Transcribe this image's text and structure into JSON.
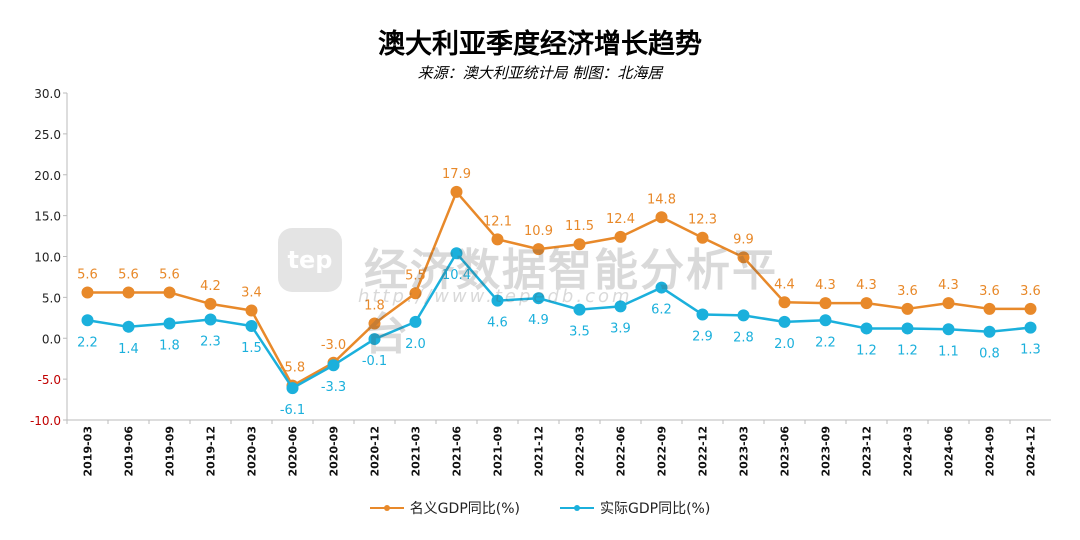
{
  "chart_data": {
    "type": "line",
    "title": "澳大利亚季度经济增长趋势",
    "subtitle": "来源：澳大利亚统计局 制图：北海居",
    "categories": [
      "2019-03",
      "2019-06",
      "2019-09",
      "2019-12",
      "2020-03",
      "2020-06",
      "2020-09",
      "2020-12",
      "2021-03",
      "2021-06",
      "2021-09",
      "2021-12",
      "2022-03",
      "2022-06",
      "2022-09",
      "2022-12",
      "2023-03",
      "2023-06",
      "2023-09",
      "2023-12",
      "2024-03",
      "2024-06",
      "2024-09",
      "2024-12"
    ],
    "series": [
      {
        "name": "名义GDP同比(%)",
        "color": "#e8892a",
        "values": [
          5.6,
          5.6,
          5.6,
          4.2,
          3.4,
          -5.8,
          -3.0,
          1.8,
          5.5,
          17.9,
          12.1,
          10.9,
          11.5,
          12.4,
          14.8,
          12.3,
          9.9,
          4.4,
          4.3,
          4.3,
          3.6,
          4.3,
          3.6,
          3.6
        ],
        "labels": [
          "5.6",
          "5.6",
          "5.6",
          "4.2",
          "3.4",
          "-5.8",
          "-3.0",
          "1.8",
          "5.5",
          "17.9",
          "12.1",
          "10.9",
          "11.5",
          "12.4",
          "14.8",
          "12.3",
          "9.9",
          "4.4",
          "4.3",
          "4.3",
          "3.6",
          "4.3",
          "3.6",
          "3.6"
        ]
      },
      {
        "name": "实际GDP同比(%)",
        "color": "#1bb0dc",
        "values": [
          2.2,
          1.4,
          1.8,
          2.3,
          1.5,
          -6.1,
          -3.3,
          -0.1,
          2.0,
          10.4,
          4.6,
          4.9,
          3.5,
          3.9,
          6.2,
          2.9,
          2.8,
          2.0,
          2.2,
          1.2,
          1.2,
          1.1,
          0.8,
          1.3
        ],
        "labels": [
          "2.2",
          "1.4",
          "1.8",
          "2.3",
          "1.5",
          "-6.1",
          "-3.3",
          "-0.1",
          "2.0",
          "10.4",
          "4.6",
          "4.9",
          "3.5",
          "3.9",
          "6.2",
          "2.9",
          "2.8",
          "2.0",
          "2.2",
          "1.2",
          "1.2",
          "1.1",
          "0.8",
          "1.3"
        ]
      }
    ],
    "ylim": [
      -10,
      30
    ],
    "yticks": [
      "30.0",
      "25.0",
      "20.0",
      "15.0",
      "10.0",
      "5.0",
      "0.0",
      "-5.0",
      "-10.0"
    ],
    "ytick_values": [
      30,
      25,
      20,
      15,
      10,
      5,
      0,
      -5,
      -10
    ],
    "xlabel": "",
    "ylabel": "",
    "legend_position": "bottom"
  },
  "watermark": {
    "logo_text": "tep",
    "text": "经济数据智能分析平台",
    "url": "http://www.tepedb.com"
  }
}
